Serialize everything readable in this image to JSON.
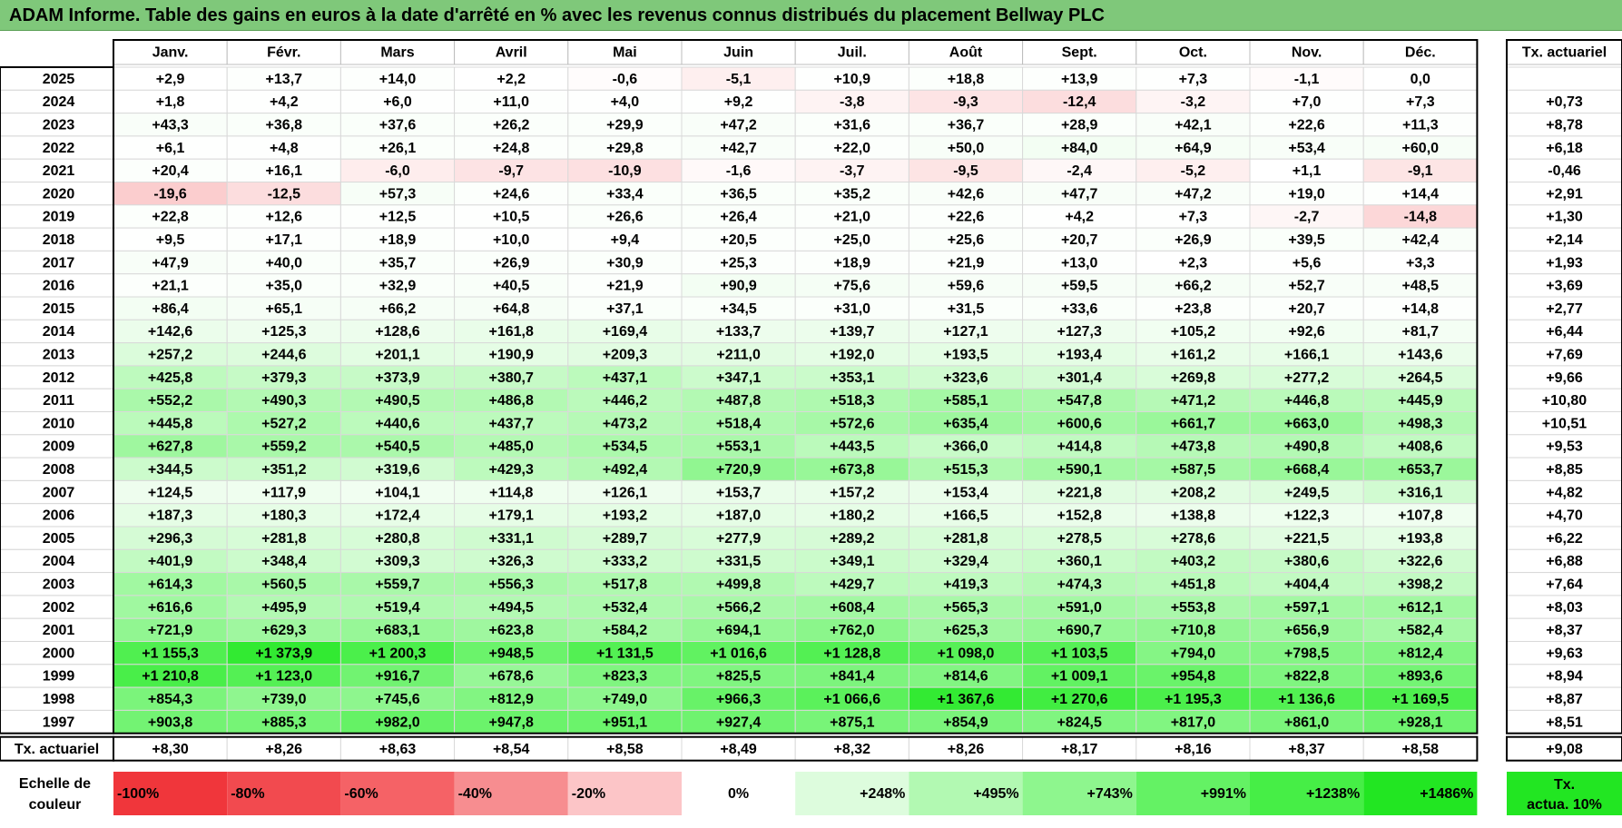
{
  "chart_data": {
    "type": "table",
    "title": "ADAM Informe. Table des gains en euros à la date d'arrêté en % avec les revenus connus distribués du placement Bellway PLC",
    "columns": [
      "Janv.",
      "Févr.",
      "Mars",
      "Avril",
      "Mai",
      "Juin",
      "Juil.",
      "Août",
      "Sept.",
      "Oct.",
      "Nov.",
      "Déc."
    ],
    "rate_header": "Tx. actuariel",
    "rows": [
      {
        "year": "2025",
        "values": [
          "+2,9",
          "+13,7",
          "+14,0",
          "+2,2",
          "-0,6",
          "-5,1",
          "+10,9",
          "+18,8",
          "+13,9",
          "+7,3",
          "-1,1",
          "0,0"
        ],
        "rate": ""
      },
      {
        "year": "2024",
        "values": [
          "+1,8",
          "+4,2",
          "+6,0",
          "+11,0",
          "+4,0",
          "+9,2",
          "-3,8",
          "-9,3",
          "-12,4",
          "-3,2",
          "+7,0",
          "+7,3"
        ],
        "rate": "+0,73"
      },
      {
        "year": "2023",
        "values": [
          "+43,3",
          "+36,8",
          "+37,6",
          "+26,2",
          "+29,9",
          "+47,2",
          "+31,6",
          "+36,7",
          "+28,9",
          "+42,1",
          "+22,6",
          "+11,3"
        ],
        "rate": "+8,78"
      },
      {
        "year": "2022",
        "values": [
          "+6,1",
          "+4,8",
          "+26,1",
          "+24,8",
          "+29,8",
          "+42,7",
          "+22,0",
          "+50,0",
          "+84,0",
          "+64,9",
          "+53,4",
          "+60,0"
        ],
        "rate": "+6,18"
      },
      {
        "year": "2021",
        "values": [
          "+20,4",
          "+16,1",
          "-6,0",
          "-9,7",
          "-10,9",
          "-1,6",
          "-3,7",
          "-9,5",
          "-2,4",
          "-5,2",
          "+1,1",
          "-9,1"
        ],
        "rate": "-0,46"
      },
      {
        "year": "2020",
        "values": [
          "-19,6",
          "-12,5",
          "+57,3",
          "+24,6",
          "+33,4",
          "+36,5",
          "+35,2",
          "+42,6",
          "+47,7",
          "+47,2",
          "+19,0",
          "+14,4"
        ],
        "rate": "+2,91"
      },
      {
        "year": "2019",
        "values": [
          "+22,8",
          "+12,6",
          "+12,5",
          "+10,5",
          "+26,6",
          "+26,4",
          "+21,0",
          "+22,6",
          "+4,2",
          "+7,3",
          "-2,7",
          "-14,8"
        ],
        "rate": "+1,30"
      },
      {
        "year": "2018",
        "values": [
          "+9,5",
          "+17,1",
          "+18,9",
          "+10,0",
          "+9,4",
          "+20,5",
          "+25,0",
          "+25,6",
          "+20,7",
          "+26,9",
          "+39,5",
          "+42,4"
        ],
        "rate": "+2,14"
      },
      {
        "year": "2017",
        "values": [
          "+47,9",
          "+40,0",
          "+35,7",
          "+26,9",
          "+30,9",
          "+25,3",
          "+18,9",
          "+21,9",
          "+13,0",
          "+2,3",
          "+5,6",
          "+3,3"
        ],
        "rate": "+1,93"
      },
      {
        "year": "2016",
        "values": [
          "+21,1",
          "+35,0",
          "+32,9",
          "+40,5",
          "+21,9",
          "+90,9",
          "+75,6",
          "+59,6",
          "+59,5",
          "+66,2",
          "+52,7",
          "+48,5"
        ],
        "rate": "+3,69"
      },
      {
        "year": "2015",
        "values": [
          "+86,4",
          "+65,1",
          "+66,2",
          "+64,8",
          "+37,1",
          "+34,5",
          "+31,0",
          "+31,5",
          "+33,6",
          "+23,8",
          "+20,7",
          "+14,8"
        ],
        "rate": "+2,77"
      },
      {
        "year": "2014",
        "values": [
          "+142,6",
          "+125,3",
          "+128,6",
          "+161,8",
          "+169,4",
          "+133,7",
          "+139,7",
          "+127,1",
          "+127,3",
          "+105,2",
          "+92,6",
          "+81,7"
        ],
        "rate": "+6,44"
      },
      {
        "year": "2013",
        "values": [
          "+257,2",
          "+244,6",
          "+201,1",
          "+190,9",
          "+209,3",
          "+211,0",
          "+192,0",
          "+193,5",
          "+193,4",
          "+161,2",
          "+166,1",
          "+143,6"
        ],
        "rate": "+7,69"
      },
      {
        "year": "2012",
        "values": [
          "+425,8",
          "+379,3",
          "+373,9",
          "+380,7",
          "+437,1",
          "+347,1",
          "+353,1",
          "+323,6",
          "+301,4",
          "+269,8",
          "+277,2",
          "+264,5"
        ],
        "rate": "+9,66"
      },
      {
        "year": "2011",
        "values": [
          "+552,2",
          "+490,3",
          "+490,5",
          "+486,8",
          "+446,2",
          "+487,8",
          "+518,3",
          "+585,1",
          "+547,8",
          "+471,2",
          "+446,8",
          "+445,9"
        ],
        "rate": "+10,80"
      },
      {
        "year": "2010",
        "values": [
          "+445,8",
          "+527,2",
          "+440,6",
          "+437,7",
          "+473,2",
          "+518,4",
          "+572,6",
          "+635,4",
          "+600,6",
          "+661,7",
          "+663,0",
          "+498,3"
        ],
        "rate": "+10,51"
      },
      {
        "year": "2009",
        "values": [
          "+627,8",
          "+559,2",
          "+540,5",
          "+485,0",
          "+534,5",
          "+553,1",
          "+443,5",
          "+366,0",
          "+414,8",
          "+473,8",
          "+490,8",
          "+408,6"
        ],
        "rate": "+9,53"
      },
      {
        "year": "2008",
        "values": [
          "+344,5",
          "+351,2",
          "+319,6",
          "+429,3",
          "+492,4",
          "+720,9",
          "+673,8",
          "+515,3",
          "+590,1",
          "+587,5",
          "+668,4",
          "+653,7"
        ],
        "rate": "+8,85"
      },
      {
        "year": "2007",
        "values": [
          "+124,5",
          "+117,9",
          "+104,1",
          "+114,8",
          "+126,1",
          "+153,7",
          "+157,2",
          "+153,4",
          "+221,8",
          "+208,2",
          "+249,5",
          "+316,1"
        ],
        "rate": "+4,82"
      },
      {
        "year": "2006",
        "values": [
          "+187,3",
          "+180,3",
          "+172,4",
          "+179,1",
          "+193,2",
          "+187,0",
          "+180,2",
          "+166,5",
          "+152,8",
          "+138,8",
          "+122,3",
          "+107,8"
        ],
        "rate": "+4,70"
      },
      {
        "year": "2005",
        "values": [
          "+296,3",
          "+281,8",
          "+280,8",
          "+331,1",
          "+289,7",
          "+277,9",
          "+289,2",
          "+281,8",
          "+278,5",
          "+278,6",
          "+221,5",
          "+193,8"
        ],
        "rate": "+6,22"
      },
      {
        "year": "2004",
        "values": [
          "+401,9",
          "+348,4",
          "+309,3",
          "+326,3",
          "+333,2",
          "+331,5",
          "+349,1",
          "+329,4",
          "+360,1",
          "+403,2",
          "+380,6",
          "+322,6"
        ],
        "rate": "+6,88"
      },
      {
        "year": "2003",
        "values": [
          "+614,3",
          "+560,5",
          "+559,7",
          "+556,3",
          "+517,8",
          "+499,8",
          "+429,7",
          "+419,3",
          "+474,3",
          "+451,8",
          "+404,4",
          "+398,2"
        ],
        "rate": "+7,64"
      },
      {
        "year": "2002",
        "values": [
          "+616,6",
          "+495,9",
          "+519,4",
          "+494,5",
          "+532,4",
          "+566,2",
          "+608,4",
          "+565,3",
          "+591,0",
          "+553,8",
          "+597,1",
          "+612,1"
        ],
        "rate": "+8,03"
      },
      {
        "year": "2001",
        "values": [
          "+721,9",
          "+629,3",
          "+683,1",
          "+623,8",
          "+584,2",
          "+694,1",
          "+762,0",
          "+625,3",
          "+690,7",
          "+710,8",
          "+656,9",
          "+582,4"
        ],
        "rate": "+8,37"
      },
      {
        "year": "2000",
        "values": [
          "+1 155,3",
          "+1 373,9",
          "+1 200,3",
          "+948,5",
          "+1 131,5",
          "+1 016,6",
          "+1 128,8",
          "+1 098,0",
          "+1 103,5",
          "+794,0",
          "+798,5",
          "+812,4"
        ],
        "rate": "+9,63"
      },
      {
        "year": "1999",
        "values": [
          "+1 210,8",
          "+1 123,0",
          "+916,7",
          "+678,6",
          "+823,3",
          "+825,5",
          "+841,4",
          "+814,6",
          "+1 009,1",
          "+954,8",
          "+822,8",
          "+893,6"
        ],
        "rate": "+8,94"
      },
      {
        "year": "1998",
        "values": [
          "+854,3",
          "+739,0",
          "+745,6",
          "+812,9",
          "+749,0",
          "+966,3",
          "+1 066,6",
          "+1 367,6",
          "+1 270,6",
          "+1 195,3",
          "+1 136,6",
          "+1 169,5"
        ],
        "rate": "+8,87"
      },
      {
        "year": "1997",
        "values": [
          "+903,8",
          "+885,3",
          "+982,0",
          "+947,8",
          "+951,1",
          "+927,4",
          "+875,1",
          "+854,9",
          "+824,5",
          "+817,0",
          "+861,0",
          "+928,1"
        ],
        "rate": "+8,51"
      }
    ],
    "footer": {
      "label": "Tx. actuariel",
      "values": [
        "+8,30",
        "+8,26",
        "+8,63",
        "+8,54",
        "+8,58",
        "+8,49",
        "+8,32",
        "+8,26",
        "+8,17",
        "+8,16",
        "+8,37",
        "+8,58"
      ],
      "rate": "+9,08"
    },
    "scale": {
      "label_line1": "Echelle de",
      "label_line2": "couleur",
      "items": [
        "-100%",
        "-80%",
        "-60%",
        "-40%",
        "-20%",
        "0%",
        "+248%",
        "+495%",
        "+743%",
        "+991%",
        "+1238%",
        "+1486%"
      ],
      "colors": [
        "#f0363b",
        "#f24a4f",
        "#f56266",
        "#f78d90",
        "#fcc5c7",
        "#ffffff",
        "#ddfcdd",
        "#b2f9b2",
        "#8ef68e",
        "#64f264",
        "#46ee46",
        "#22e622"
      ],
      "rate_line1": "Tx.",
      "rate_line2": "actua. 10%",
      "rate_color": "#22e622"
    }
  }
}
